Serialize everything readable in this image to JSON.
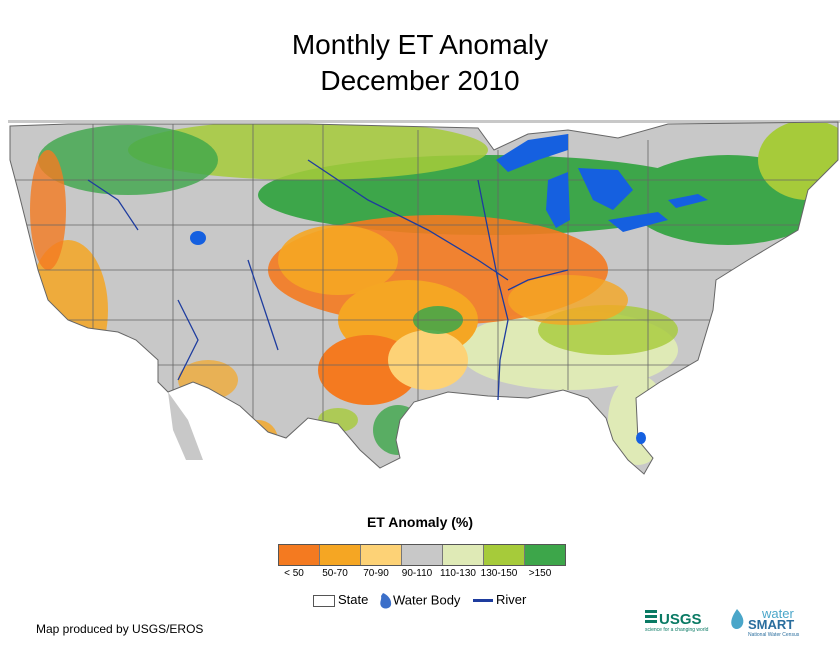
{
  "title": {
    "line1": "Monthly ET Anomaly",
    "line2": "December 2010"
  },
  "legend": {
    "title": "ET Anomaly (%)",
    "classes": [
      {
        "label": "< 50",
        "color": "#f47a20"
      },
      {
        "label": "50-70",
        "color": "#f5a623"
      },
      {
        "label": "70-90",
        "color": "#fdd276"
      },
      {
        "label": "90-110",
        "color": "#c8c8c8"
      },
      {
        "label": "110-130",
        "color": "#dfeab6"
      },
      {
        "label": "130-150",
        "color": "#a6cb3a"
      },
      {
        "label": ">150",
        "color": "#3da64a"
      }
    ],
    "state_label": "State",
    "water_label": "Water Body",
    "river_label": "River"
  },
  "colors": {
    "water": "#1560e0",
    "river": "#1e3c9e",
    "background_gray": "#c6c6c6"
  },
  "credit": "Map produced by USGS/EROS",
  "logos": {
    "usgs_text": "USGS",
    "usgs_tagline": "science for a changing world",
    "watersmart_top": "water",
    "watersmart_bottom": "SMART",
    "watersmart_tagline": "National Water Census"
  }
}
